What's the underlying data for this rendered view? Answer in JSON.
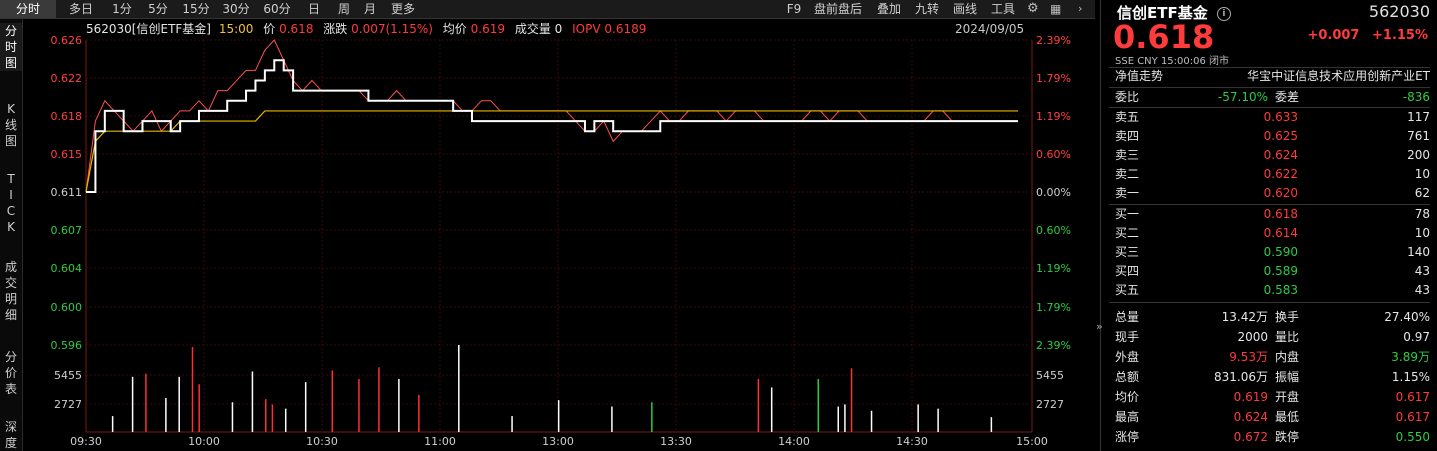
{
  "toolbar": {
    "left_tabs": [
      "分时",
      "多日",
      "1分",
      "5分",
      "15分",
      "30分",
      "60分",
      "日",
      "周",
      "月",
      "更多"
    ],
    "right_items": [
      "F9",
      "盘前盘后",
      "叠加",
      "九转",
      "画线",
      "工具"
    ]
  },
  "sidebar": [
    "分时图",
    "K线图",
    "TICK",
    "成交明细",
    "分价表",
    "深度"
  ],
  "info": {
    "code_name": "562030[信创ETF基金]",
    "time": "15:00",
    "price_label": "价",
    "price": "0.618",
    "change_label": "涨跌",
    "change": "0.007(1.15%)",
    "avg_label": "均价",
    "avg": "0.619",
    "vol_label": "成交量",
    "vol": "0",
    "iopv_label": "IOPV",
    "iopv": "0.6189",
    "date": "2024/09/05"
  },
  "chart_data": {
    "type": "line",
    "y_left_ticks": [
      "0.626",
      "0.622",
      "0.618",
      "0.615",
      "0.611",
      "0.607",
      "0.604",
      "0.600",
      "0.596"
    ],
    "y_right_ticks": [
      "2.39%",
      "1.79%",
      "1.19%",
      "0.60%",
      "0.00%",
      "0.60%",
      "1.19%",
      "1.79%",
      "2.39%"
    ],
    "x_ticks": [
      "09:30",
      "10:00",
      "10:30",
      "11:00",
      "13:00",
      "13:30",
      "14:00",
      "14:30",
      "15:00"
    ],
    "vol_ticks": [
      "5455",
      "2727"
    ],
    "ylim": [
      0.596,
      0.626
    ],
    "price": [
      0.611,
      0.617,
      0.619,
      0.619,
      0.617,
      0.617,
      0.618,
      0.618,
      0.618,
      0.617,
      0.618,
      0.618,
      0.619,
      0.619,
      0.619,
      0.62,
      0.62,
      0.621,
      0.622,
      0.623,
      0.624,
      0.623,
      0.621,
      0.621,
      0.621,
      0.621,
      0.621,
      0.621,
      0.621,
      0.621,
      0.62,
      0.62,
      0.62,
      0.62,
      0.62,
      0.62,
      0.62,
      0.62,
      0.62,
      0.619,
      0.619,
      0.618,
      0.618,
      0.618,
      0.618,
      0.618,
      0.618,
      0.618,
      0.618,
      0.618,
      0.618,
      0.618,
      0.618,
      0.617,
      0.618,
      0.618,
      0.617,
      0.617,
      0.617,
      0.617,
      0.617,
      0.618,
      0.618,
      0.618,
      0.618,
      0.618,
      0.618,
      0.618,
      0.618,
      0.618,
      0.618,
      0.618,
      0.618,
      0.618,
      0.618,
      0.618,
      0.618,
      0.618,
      0.618,
      0.618,
      0.618,
      0.618,
      0.618,
      0.618,
      0.618,
      0.618,
      0.618,
      0.618,
      0.618,
      0.618,
      0.618,
      0.618,
      0.618,
      0.618,
      0.618,
      0.618,
      0.618,
      0.618,
      0.618,
      0.618
    ],
    "avg": [
      0.611,
      0.616,
      0.617,
      0.617,
      0.617,
      0.617,
      0.617,
      0.617,
      0.617,
      0.617,
      0.618,
      0.618,
      0.618,
      0.618,
      0.618,
      0.618,
      0.618,
      0.618,
      0.618,
      0.619,
      0.619,
      0.619,
      0.619,
      0.619,
      0.619,
      0.619,
      0.619,
      0.619,
      0.619,
      0.619,
      0.619,
      0.619,
      0.619,
      0.619,
      0.619,
      0.619,
      0.619,
      0.619,
      0.619,
      0.619,
      0.619,
      0.619,
      0.619,
      0.619,
      0.619,
      0.619,
      0.619,
      0.619,
      0.619,
      0.619,
      0.619,
      0.619,
      0.619,
      0.619,
      0.619,
      0.619,
      0.619,
      0.619,
      0.619,
      0.619,
      0.619,
      0.619,
      0.619,
      0.619,
      0.619,
      0.619,
      0.619,
      0.619,
      0.619,
      0.619,
      0.619,
      0.619,
      0.619,
      0.619,
      0.619,
      0.619,
      0.619,
      0.619,
      0.619,
      0.619,
      0.619,
      0.619,
      0.619,
      0.619,
      0.619,
      0.619,
      0.619,
      0.619,
      0.619,
      0.619,
      0.619,
      0.619,
      0.619,
      0.619,
      0.619,
      0.619,
      0.619,
      0.619,
      0.619,
      0.619
    ],
    "iopv": [
      0.611,
      0.618,
      0.62,
      0.619,
      0.618,
      0.617,
      0.618,
      0.619,
      0.617,
      0.618,
      0.619,
      0.619,
      0.62,
      0.619,
      0.621,
      0.621,
      0.622,
      0.623,
      0.623,
      0.625,
      0.626,
      0.624,
      0.622,
      0.621,
      0.622,
      0.621,
      0.621,
      0.621,
      0.621,
      0.621,
      0.62,
      0.62,
      0.62,
      0.621,
      0.62,
      0.62,
      0.62,
      0.62,
      0.62,
      0.62,
      0.619,
      0.619,
      0.62,
      0.62,
      0.619,
      0.619,
      0.619,
      0.619,
      0.619,
      0.619,
      0.619,
      0.619,
      0.618,
      0.617,
      0.617,
      0.618,
      0.616,
      0.617,
      0.617,
      0.617,
      0.618,
      0.619,
      0.618,
      0.618,
      0.619,
      0.619,
      0.619,
      0.619,
      0.618,
      0.619,
      0.619,
      0.619,
      0.618,
      0.618,
      0.618,
      0.618,
      0.618,
      0.619,
      0.619,
      0.618,
      0.619,
      0.619,
      0.619,
      0.618,
      0.618,
      0.618,
      0.618,
      0.618,
      0.618,
      0.618,
      0.619,
      0.619,
      0.618,
      0.618,
      0.618,
      0.618,
      0.618,
      0.618,
      0.618,
      0.618
    ],
    "volume": [
      {
        "i": 4,
        "v": 1500,
        "c": "w"
      },
      {
        "i": 7,
        "v": 5200,
        "c": "w"
      },
      {
        "i": 9,
        "v": 5500,
        "c": "r"
      },
      {
        "i": 12,
        "v": 3200,
        "c": "w"
      },
      {
        "i": 14,
        "v": 5200,
        "c": "w"
      },
      {
        "i": 16,
        "v": 8000,
        "c": "r"
      },
      {
        "i": 17,
        "v": 4500,
        "c": "r"
      },
      {
        "i": 22,
        "v": 2800,
        "c": "w"
      },
      {
        "i": 25,
        "v": 5700,
        "c": "w"
      },
      {
        "i": 27,
        "v": 3100,
        "c": "r"
      },
      {
        "i": 28,
        "v": 2600,
        "c": "r"
      },
      {
        "i": 30,
        "v": 2200,
        "c": "w"
      },
      {
        "i": 33,
        "v": 4700,
        "c": "w"
      },
      {
        "i": 37,
        "v": 5800,
        "c": "r"
      },
      {
        "i": 41,
        "v": 5000,
        "c": "r"
      },
      {
        "i": 44,
        "v": 6100,
        "c": "r"
      },
      {
        "i": 47,
        "v": 5000,
        "c": "w"
      },
      {
        "i": 50,
        "v": 3500,
        "c": "r"
      },
      {
        "i": 56,
        "v": 8700,
        "c": "w"
      },
      {
        "i": 64,
        "v": 1500,
        "c": "w"
      },
      {
        "i": 71,
        "v": 3000,
        "c": "w"
      },
      {
        "i": 79,
        "v": 2400,
        "c": "w"
      },
      {
        "i": 85,
        "v": 2800,
        "c": "g"
      },
      {
        "i": 101,
        "v": 5000,
        "c": "r"
      },
      {
        "i": 103,
        "v": 4200,
        "c": "w"
      },
      {
        "i": 110,
        "v": 5000,
        "c": "g"
      },
      {
        "i": 113,
        "v": 2400,
        "c": "w"
      },
      {
        "i": 114,
        "v": 2600,
        "c": "w"
      },
      {
        "i": 115,
        "v": 6000,
        "c": "r"
      },
      {
        "i": 118,
        "v": 2000,
        "c": "w"
      },
      {
        "i": 125,
        "v": 2600,
        "c": "w"
      },
      {
        "i": 128,
        "v": 2200,
        "c": "w"
      },
      {
        "i": 136,
        "v": 1400,
        "c": "w"
      }
    ]
  },
  "panel": {
    "title": "信创ETF基金",
    "code": "562030",
    "price": "0.618",
    "change": "+0.007",
    "change_pct": "+1.15%",
    "meta": "SSE  CNY  15:00:06  闭市",
    "nav_label": "净值走势",
    "index_name": "华宝中证信息技术应用创新产业ET",
    "webi_label": "委比",
    "webi": "-57.10%",
    "weicha_label": "委差",
    "weicha": "-836",
    "asks": [
      {
        "label": "卖五",
        "price": "0.633",
        "vol": "117"
      },
      {
        "label": "卖四",
        "price": "0.625",
        "vol": "761"
      },
      {
        "label": "卖三",
        "price": "0.624",
        "vol": "200"
      },
      {
        "label": "卖二",
        "price": "0.622",
        "vol": "10"
      },
      {
        "label": "卖一",
        "price": "0.620",
        "vol": "62"
      }
    ],
    "bids": [
      {
        "label": "买一",
        "price": "0.618",
        "vol": "78",
        "color": "red"
      },
      {
        "label": "买二",
        "price": "0.614",
        "vol": "10",
        "color": "red"
      },
      {
        "label": "买三",
        "price": "0.590",
        "vol": "140",
        "color": "green"
      },
      {
        "label": "买四",
        "price": "0.589",
        "vol": "43",
        "color": "green"
      },
      {
        "label": "买五",
        "price": "0.583",
        "vol": "43",
        "color": "green"
      }
    ],
    "stats": [
      {
        "l1": "总量",
        "v1": "13.42万",
        "c1": "white",
        "l2": "换手",
        "v2": "27.40%",
        "c2": "white"
      },
      {
        "l1": "现手",
        "v1": "2000",
        "c1": "white",
        "l2": "量比",
        "v2": "0.97",
        "c2": "white"
      },
      {
        "l1": "外盘",
        "v1": "9.53万",
        "c1": "red",
        "l2": "内盘",
        "v2": "3.89万",
        "c2": "green"
      },
      {
        "l1": "总额",
        "v1": "831.06万",
        "c1": "white",
        "l2": "振幅",
        "v2": "1.15%",
        "c2": "white"
      },
      {
        "l1": "均价",
        "v1": "0.619",
        "c1": "red",
        "l2": "开盘",
        "v2": "0.617",
        "c2": "red"
      },
      {
        "l1": "最高",
        "v1": "0.624",
        "c1": "red",
        "l2": "最低",
        "v2": "0.617",
        "c2": "red"
      },
      {
        "l1": "涨停",
        "v1": "0.672",
        "c1": "red",
        "l2": "跌停",
        "v2": "0.550",
        "c2": "green"
      }
    ]
  }
}
